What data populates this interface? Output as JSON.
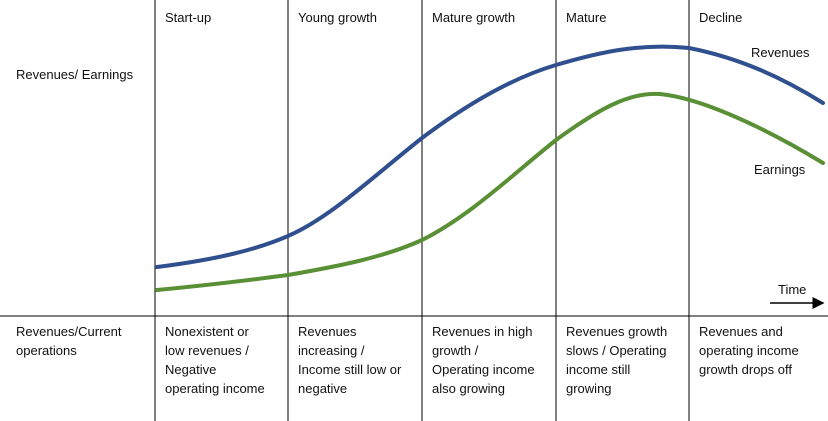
{
  "row_labels": {
    "top": "Revenues/ Earnings",
    "bottom_line1": "Revenues/Current",
    "bottom_line2": "operations"
  },
  "stages": [
    {
      "name": "Start-up",
      "description": [
        "Nonexistent or",
        "low revenues /",
        "Negative",
        "operating income"
      ]
    },
    {
      "name": "Young growth",
      "description": [
        "Revenues",
        "increasing /",
        "Income still low or",
        "negative"
      ]
    },
    {
      "name": "Mature growth",
      "description": [
        "Revenues in high",
        "growth /",
        "Operating income",
        "also growing"
      ]
    },
    {
      "name": "Mature",
      "description": [
        "Revenues growth",
        "slows / Operating",
        "income still",
        "growing"
      ]
    },
    {
      "name": "Decline",
      "description": [
        "Revenues and",
        "operating income",
        "growth drops off"
      ]
    }
  ],
  "curves": {
    "revenues": {
      "label": "Revenues",
      "color": "#2f4f8f"
    },
    "earnings": {
      "label": "Earnings",
      "color": "#5a9035"
    }
  },
  "axis": {
    "time_label": "Time"
  }
}
